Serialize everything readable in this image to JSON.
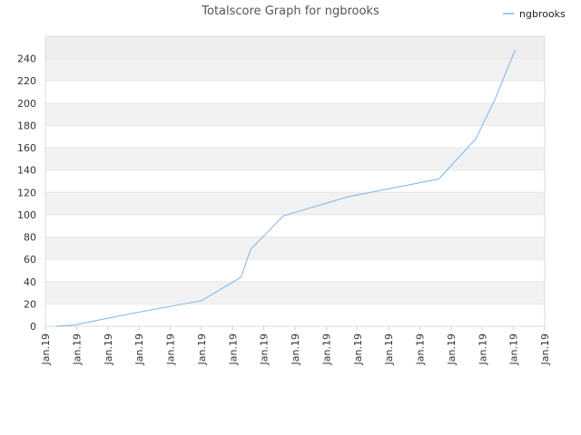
{
  "chart_data": {
    "type": "line",
    "title": "Totalscore Graph for ngbrooks",
    "xlabel": "",
    "ylabel": "",
    "x_tick_labels": [
      "Jan.19",
      "Jan.19",
      "Jan.19",
      "Jan.19",
      "Jan.19",
      "Jan.19",
      "Jan.19",
      "Jan.19",
      "Jan.19",
      "Jan.19",
      "Jan.19",
      "Jan.19",
      "Jan.19",
      "Jan.19",
      "Jan.19",
      "Jan.19",
      "Jan.19"
    ],
    "y_ticks": [
      0,
      20,
      40,
      60,
      80,
      100,
      120,
      140,
      160,
      180,
      200,
      220,
      240
    ],
    "ylim": [
      0,
      260
    ],
    "grid": true,
    "grid_bands": true,
    "legend_position": "top-right",
    "series": [
      {
        "name": "ngbrooks",
        "color": "#7cb5ec",
        "points_xfrac": [
          0.021,
          0.057,
          0.167,
          0.313,
          0.392,
          0.411,
          0.477,
          0.605,
          0.788,
          0.862,
          0.902,
          0.941
        ],
        "values": [
          0,
          1,
          11,
          23,
          44,
          69,
          99,
          116,
          132,
          168,
          205,
          248
        ]
      }
    ]
  }
}
